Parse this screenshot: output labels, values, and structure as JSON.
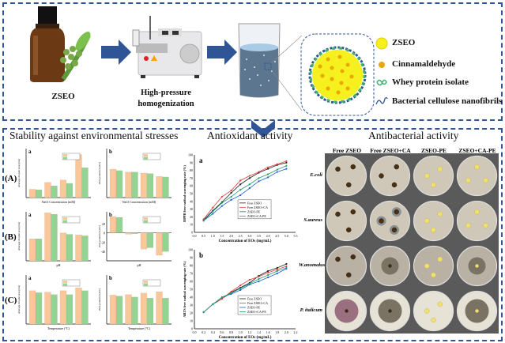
{
  "process": {
    "zseo_label": "ZSEO",
    "homogenizer_label_1": "High-pressure",
    "homogenizer_label_2": "homogenization",
    "legend": [
      {
        "label": "ZSEO",
        "icon": "yellow-sphere-icon"
      },
      {
        "label": "Cinnamaldehyde",
        "icon": "orange-bead-icon"
      },
      {
        "label": "Whey protein isolate",
        "icon": "green-protein-icon"
      },
      {
        "label": "Bacterial cellulose nanofibrils",
        "icon": "blue-fibril-icon"
      }
    ]
  },
  "colors": {
    "accent": "#2f5597",
    "bar_orange": "#f9c79a",
    "bar_green": "#93d393",
    "zseo_yellow": "#f5f01e"
  },
  "stability": {
    "title": "Stability against environmental stresses",
    "rows": [
      "(A)",
      "(B)",
      "(C)"
    ]
  },
  "antioxidant": {
    "title": "Antioxidant activity"
  },
  "antibacterial": {
    "title": "Antibacterial activity",
    "columns": [
      "Free  ZSEO",
      "Free  ZSEO+CA",
      "ZSEO-PE",
      "ZSEO+CA-PE"
    ],
    "rows": [
      "E.coli",
      "S.aureus",
      "W.anomalus",
      "P. italicum"
    ]
  },
  "chart_data": [
    {
      "type": "bar",
      "panel": "a",
      "row": "(A)",
      "xlabel": "NaCl Concentration (mM)",
      "ylabel": "Average droplet size (nm)",
      "categories": [
        "",
        "",
        "",
        ""
      ],
      "ylim": [
        0,
        1
      ],
      "series": [
        {
          "values": [
            0.17,
            0.31,
            0.36,
            0.88
          ]
        },
        {
          "values": [
            0.16,
            0.24,
            0.29,
            0.61
          ]
        }
      ]
    },
    {
      "type": "bar",
      "panel": "b",
      "row": "(A)",
      "xlabel": "NaCl Concentration (mM)",
      "ylabel": "Zeta-potential (mV)",
      "categories": [
        "",
        "",
        "",
        ""
      ],
      "ylim": [
        0,
        1
      ],
      "series": [
        {
          "values": [
            0.58,
            0.52,
            0.5,
            0.43
          ]
        },
        {
          "values": [
            0.55,
            0.52,
            0.49,
            0.42
          ]
        }
      ]
    },
    {
      "type": "bar",
      "panel": "a",
      "row": "(B)",
      "xlabel": "pH",
      "ylabel": "Average droplet size (nm)",
      "categories": [
        "",
        "",
        "",
        ""
      ],
      "ylim": [
        0,
        1
      ],
      "series": [
        {
          "values": [
            0.45,
            0.98,
            0.57,
            0.53
          ]
        },
        {
          "values": [
            0.45,
            0.95,
            0.54,
            0.51
          ]
        }
      ]
    },
    {
      "type": "bar",
      "panel": "b",
      "row": "(B)",
      "xlabel": "pH",
      "ylabel": "Zeta-potential (mV)",
      "categories": [
        "",
        "",
        "",
        ""
      ],
      "ylim": [
        -60,
        45
      ],
      "yticks": [
        -40,
        -20,
        0,
        20
      ],
      "series": [
        {
          "values": [
            35,
            -3,
            -35,
            -48
          ]
        },
        {
          "values": [
            33,
            -2,
            -32,
            -40
          ]
        }
      ]
    },
    {
      "type": "bar",
      "panel": "a",
      "row": "(C)",
      "xlabel": "Temperature (°C)",
      "ylabel": "Average droplet size (nm)",
      "categories": [
        "",
        "",
        "",
        ""
      ],
      "ylim": [
        0,
        1
      ],
      "series": [
        {
          "values": [
            0.68,
            0.65,
            0.68,
            0.74
          ]
        },
        {
          "values": [
            0.64,
            0.6,
            0.6,
            0.68
          ]
        }
      ]
    },
    {
      "type": "bar",
      "panel": "b",
      "row": "(C)",
      "xlabel": "Temperature (°C)",
      "ylabel": "Zeta-potential (mV)",
      "categories": [
        "",
        "",
        "",
        ""
      ],
      "ylim": [
        0,
        1
      ],
      "series": [
        {
          "values": [
            0.59,
            0.6,
            0.63,
            0.66
          ]
        },
        {
          "values": [
            0.57,
            0.55,
            0.53,
            0.53
          ]
        }
      ]
    },
    {
      "type": "line",
      "panel": "a",
      "xlabel": "Concentration of EOs (mg/mL)",
      "ylabel": "DPPH free radical scavenging rate (%)",
      "xlim": [
        0,
        5.5
      ],
      "ylim": [
        0,
        100
      ],
      "x": [
        0.5,
        1.0,
        1.5,
        2.0,
        2.5,
        3.0,
        3.5,
        4.0,
        4.5,
        5.0
      ],
      "series": [
        {
          "name": "Free ZSEO",
          "color": "#222222",
          "values": [
            16,
            28,
            39,
            51,
            62,
            70,
            77,
            82,
            87,
            90
          ]
        },
        {
          "name": "Free ZSEO+CA",
          "color": "#e04040",
          "values": [
            17,
            32,
            46,
            54,
            67,
            73,
            78,
            84,
            88,
            92
          ]
        },
        {
          "name": "ZSEO-PE",
          "color": "#2060d0",
          "values": [
            15,
            24,
            34,
            42,
            48,
            57,
            66,
            71,
            78,
            82
          ]
        },
        {
          "name": "ZSEO+CA-PE",
          "color": "#20a070",
          "values": [
            15,
            27,
            38,
            46,
            55,
            62,
            70,
            75,
            81,
            86
          ]
        }
      ]
    },
    {
      "type": "line",
      "panel": "b",
      "xlabel": "Concentration of EOs (mg/mL)",
      "ylabel": "ABTS free radical scavenging rate (%)",
      "xlim": [
        0,
        2.2
      ],
      "ylim": [
        0,
        100
      ],
      "x": [
        0.2,
        0.4,
        0.6,
        0.8,
        1.0,
        1.2,
        1.4,
        1.6,
        1.8,
        2.0
      ],
      "series": [
        {
          "name": "Free ZSEO",
          "color": "#222222",
          "values": [
            21,
            31,
            38,
            46,
            52,
            58,
            67,
            73,
            77,
            82
          ]
        },
        {
          "name": "Free ZSEO+CA",
          "color": "#e04040",
          "values": [
            21,
            31,
            38,
            47,
            55,
            62,
            66,
            71,
            75,
            79
          ]
        },
        {
          "name": "ZSEO-PE",
          "color": "#2060d0",
          "values": [
            21,
            31,
            40,
            44,
            49,
            56,
            60,
            65,
            70,
            76
          ]
        },
        {
          "name": "ZSEO+CA-PE",
          "color": "#20a070",
          "values": [
            21,
            31,
            40,
            45,
            51,
            57,
            63,
            68,
            73,
            77
          ]
        }
      ]
    }
  ]
}
